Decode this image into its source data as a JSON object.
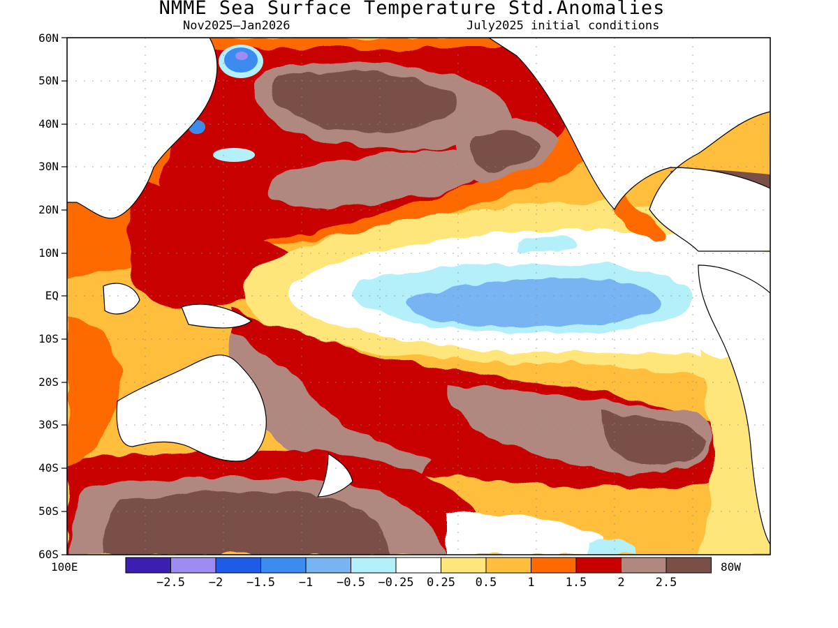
{
  "title": "NMME Sea Surface Temperature Std.Anomalies",
  "subtitle_left": "Nov2025–Jan2026",
  "subtitle_right": "July2025 initial conditions",
  "lat_labels": [
    "60N",
    "50N",
    "40N",
    "30N",
    "20N",
    "10N",
    "EQ",
    "10S",
    "20S",
    "30S",
    "40S",
    "50S",
    "60S"
  ],
  "lon_labels": {
    "west": "100E",
    "east": "80W"
  },
  "colorbar": {
    "colors": [
      "#3c1fb0",
      "#9f8cf2",
      "#1e5be6",
      "#3c8cf0",
      "#78b4f2",
      "#b4f0fa",
      "#ffffff",
      "#ffe67a",
      "#ffbe3c",
      "#ff6a00",
      "#c80000",
      "#b08880",
      "#7a5046"
    ],
    "tick_labels": [
      "-2.5",
      "-2",
      "-1.5",
      "-1",
      "-0.5",
      "-0.25",
      "0.25",
      "0.5",
      "1",
      "1.5",
      "2",
      "2.5"
    ]
  },
  "map_data": {
    "lat_range": [
      -60,
      60
    ],
    "lon_range": [
      "100E",
      "80W"
    ],
    "regions": [
      {
        "name": "north-pacific-warm-band",
        "anomaly": 1.5
      },
      {
        "name": "north-pacific-hot-core",
        "anomaly": 2.5
      },
      {
        "name": "western-pacific-warm-pool",
        "anomaly": 2.0
      },
      {
        "name": "equatorial-cold-tongue",
        "anomaly": -0.5
      },
      {
        "name": "south-pacific-warm-band",
        "anomaly": 2.0
      },
      {
        "name": "south-pacific-hot-core",
        "anomaly": 2.5
      },
      {
        "name": "southern-ocean-hot-core",
        "anomaly": 2.5
      },
      {
        "name": "sea-of-okhotsk-cold",
        "anomaly": -1.5
      }
    ]
  }
}
